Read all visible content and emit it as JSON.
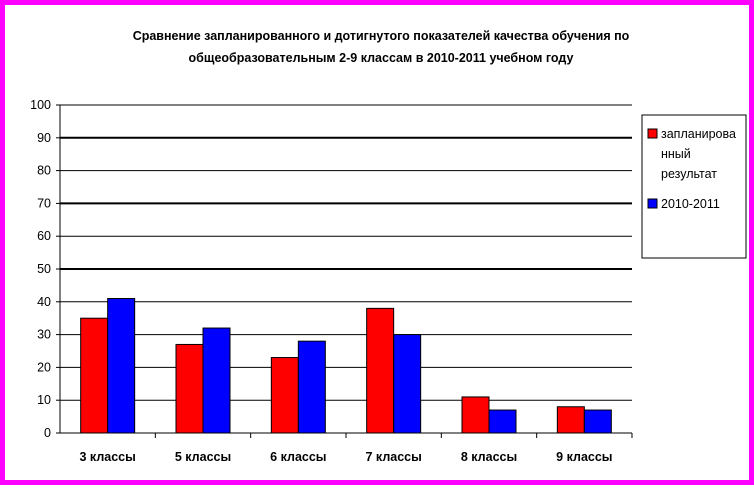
{
  "chart_data": {
    "type": "bar",
    "title_lines": [
      "Сравнение запланированного и дотигнутого показателей качества обучения по",
      "общеобразовательным 2-9  классам  в 2010-2011 учебном году"
    ],
    "categories": [
      "3 классы",
      "5 классы",
      "6 классы",
      "7 классы",
      "8 классы",
      "9 классы"
    ],
    "series": [
      {
        "name": "запланированный результат",
        "label_lines": [
          "запланирова",
          "нный",
          "результат"
        ],
        "color": "#ff0000",
        "values": [
          35,
          27,
          23,
          38,
          11,
          8
        ]
      },
      {
        "name": "2010-2011",
        "label_lines": [
          "2010-2011"
        ],
        "color": "#0000ff",
        "values": [
          41,
          32,
          28,
          30,
          7,
          7
        ]
      }
    ],
    "y_ticks": [
      "0",
      "10",
      "20",
      "30",
      "40",
      "50",
      "60",
      "70",
      "80",
      "90",
      "100"
    ],
    "ylim": [
      0,
      100
    ],
    "grid": true,
    "legend_position": "right",
    "frame_color": "#ff00ff"
  }
}
